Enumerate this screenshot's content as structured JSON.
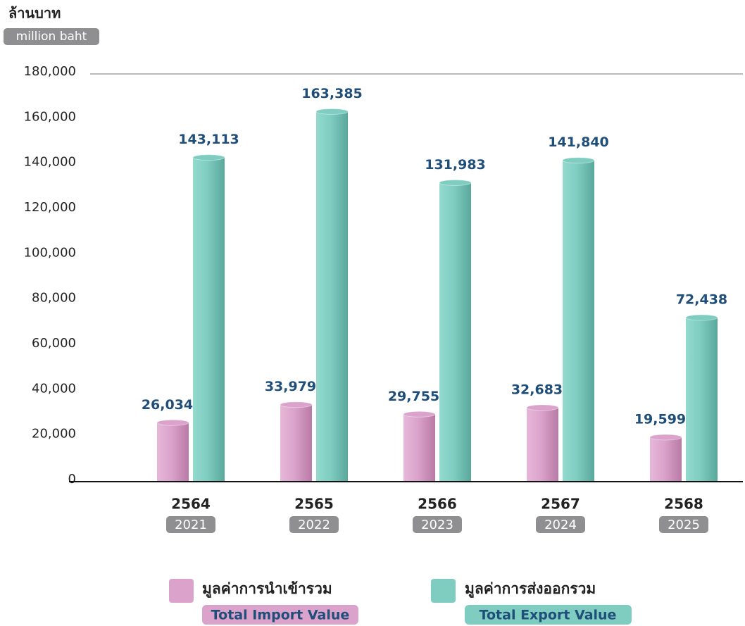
{
  "chart_data": {
    "type": "bar",
    "y_label": "ล้านบาท",
    "y_unit": "million baht",
    "categories": [
      "2564",
      "2565",
      "2566",
      "2567",
      "2568"
    ],
    "categories_en": [
      "2021",
      "2022",
      "2023",
      "2024",
      "2025"
    ],
    "series": [
      {
        "name": "มูลค่าการนำเข้ารวม",
        "name_en": "Total Import Value",
        "color": "#dba3cb",
        "values": [
          26034,
          33979,
          29755,
          32683,
          19599
        ],
        "value_labels": [
          "26,034",
          "33,979",
          "29,755",
          "32,683",
          "19,599"
        ]
      },
      {
        "name": "มูลค่าการส่งออกรวม",
        "name_en": "Total Export Value",
        "color": "#7fcdc1",
        "values": [
          143113,
          163385,
          131983,
          141840,
          72438
        ],
        "value_labels": [
          "143,113",
          "163,385",
          "131,983",
          "141,840",
          "72,438"
        ]
      }
    ],
    "ylim": [
      0,
      180000
    ],
    "yticks": [
      0,
      {
        "value": 20000,
        "label": "20,000"
      },
      {
        "value": 40000,
        "label": "40,000"
      },
      {
        "value": 60000,
        "label": "60,000"
      },
      {
        "value": 80000,
        "label": "80,000"
      },
      {
        "value": 100000,
        "label": "100,000"
      },
      {
        "value": 120000,
        "label": "120,000"
      },
      {
        "value": 140000,
        "label": "140,000"
      },
      {
        "value": 160000,
        "label": "160,000"
      },
      {
        "value": 180000,
        "label": "180,000"
      }
    ]
  }
}
